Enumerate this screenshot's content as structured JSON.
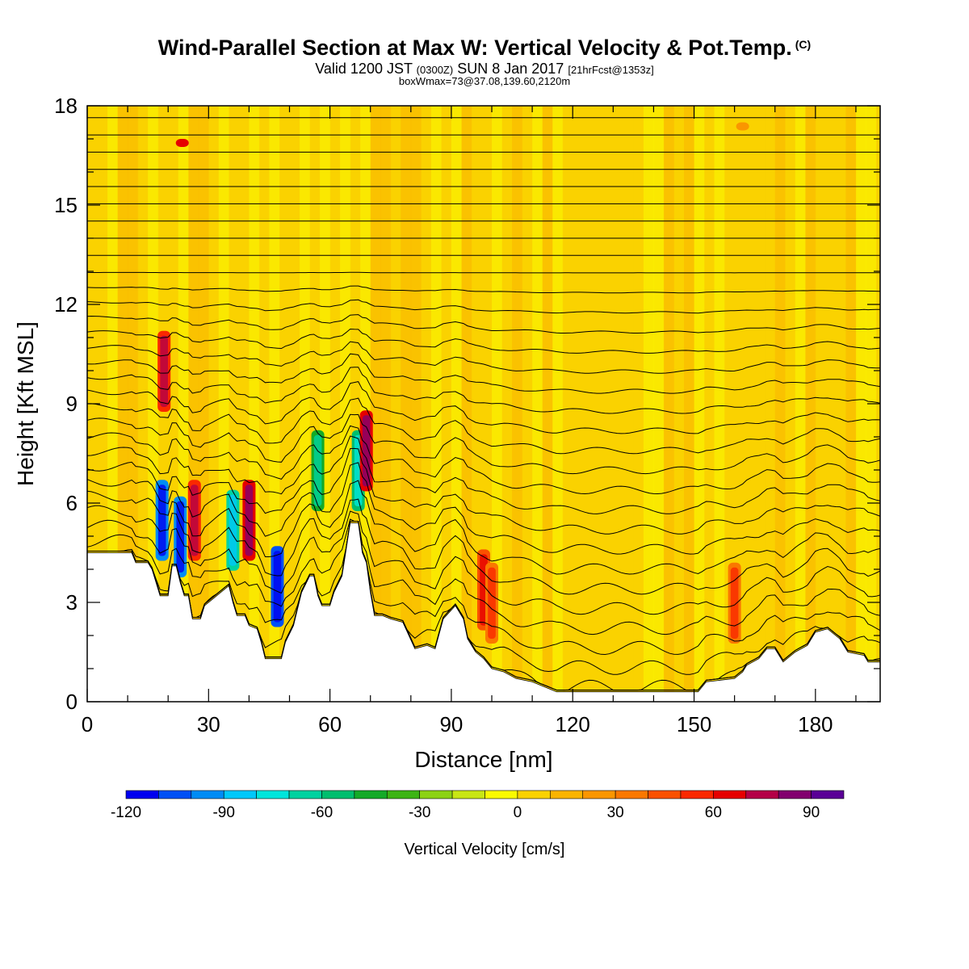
{
  "chart_data": {
    "type": "heatmap",
    "title": "Wind-Parallel Section at Max W: Vertical Velocity & Pot.Temp.",
    "title_mark": "(C)",
    "subtitle_main": "Valid 1200 JST",
    "subtitle_utc": "(0300Z)",
    "subtitle_date": "SUN 8 Jan 2017",
    "subtitle_fcst": "[21hrFcst@1353z]",
    "subtitle2": "boxWmax=73@37.08,139.60,2120m",
    "xlabel": "Distance [nm]",
    "ylabel": "Height [Kft MSL]",
    "xlim": [
      0,
      196
    ],
    "ylim": [
      0,
      18
    ],
    "xticks": [
      0,
      30,
      60,
      90,
      120,
      150,
      180
    ],
    "yticks": [
      0,
      3,
      6,
      9,
      12,
      15,
      18
    ],
    "colorbar": {
      "label": "Vertical Velocity [cm/s]",
      "min": -120,
      "max": 90,
      "step": 10,
      "tick_values": [
        -120,
        -90,
        -60,
        -30,
        0,
        30,
        60,
        90
      ],
      "colors": [
        "#0000f0",
        "#0050f5",
        "#008cf5",
        "#00c8fa",
        "#00e6dc",
        "#00d2a0",
        "#00be6e",
        "#14aa28",
        "#3cb414",
        "#8cd214",
        "#c8e614",
        "#fafa00",
        "#fad200",
        "#fab400",
        "#fa9600",
        "#fa7800",
        "#fa5000",
        "#fa2800",
        "#e60000",
        "#b40046",
        "#82006e",
        "#5a0096"
      ]
    },
    "terrain_nm_kft": [
      [
        0,
        4.5
      ],
      [
        11,
        4.5
      ],
      [
        12,
        4.2
      ],
      [
        15,
        4.2
      ],
      [
        16,
        4.0
      ],
      [
        17,
        3.6
      ],
      [
        18,
        3.2
      ],
      [
        20,
        3.2
      ],
      [
        21,
        4.1
      ],
      [
        22,
        4.1
      ],
      [
        23,
        3.6
      ],
      [
        24,
        3.2
      ],
      [
        25,
        3.2
      ],
      [
        26,
        2.5
      ],
      [
        28,
        2.5
      ],
      [
        29,
        2.9
      ],
      [
        31,
        3.1
      ],
      [
        33,
        3.3
      ],
      [
        35,
        3.5
      ],
      [
        36,
        3.0
      ],
      [
        37,
        2.6
      ],
      [
        39,
        2.6
      ],
      [
        40,
        2.3
      ],
      [
        42,
        2.2
      ],
      [
        43,
        1.8
      ],
      [
        44,
        1.3
      ],
      [
        48,
        1.3
      ],
      [
        49,
        1.8
      ],
      [
        51,
        2.3
      ],
      [
        52,
        2.8
      ],
      [
        53,
        3.3
      ],
      [
        55,
        3.8
      ],
      [
        56,
        3.8
      ],
      [
        57,
        3.2
      ],
      [
        58,
        2.9
      ],
      [
        60,
        2.9
      ],
      [
        61,
        3.3
      ],
      [
        63,
        3.8
      ],
      [
        64,
        4.6
      ],
      [
        65,
        5.4
      ],
      [
        67,
        5.4
      ],
      [
        68,
        4.5
      ],
      [
        69,
        4.2
      ],
      [
        70,
        3.3
      ],
      [
        71,
        2.6
      ],
      [
        73,
        2.6
      ],
      [
        75,
        2.5
      ],
      [
        78,
        2.4
      ],
      [
        81,
        1.6
      ],
      [
        84,
        1.7
      ],
      [
        86,
        1.6
      ],
      [
        88,
        2.5
      ],
      [
        91,
        2.9
      ],
      [
        93,
        2.5
      ],
      [
        94,
        1.9
      ],
      [
        96,
        1.5
      ],
      [
        98,
        1.3
      ],
      [
        100,
        1.0
      ],
      [
        103,
        0.9
      ],
      [
        106,
        0.7
      ],
      [
        110,
        0.6
      ],
      [
        116,
        0.3
      ],
      [
        140,
        0.3
      ],
      [
        151,
        0.3
      ],
      [
        153,
        0.6
      ],
      [
        160,
        0.7
      ],
      [
        162,
        0.9
      ],
      [
        163,
        1.1
      ],
      [
        166,
        1.3
      ],
      [
        168,
        1.6
      ],
      [
        170,
        1.6
      ],
      [
        172,
        1.2
      ],
      [
        175,
        1.5
      ],
      [
        178,
        1.7
      ],
      [
        180,
        2.1
      ],
      [
        183,
        2.2
      ],
      [
        186,
        1.9
      ],
      [
        188,
        1.5
      ],
      [
        192,
        1.4
      ],
      [
        193,
        1.2
      ],
      [
        196,
        1.2
      ]
    ],
    "updraft_bands": [
      {
        "x": 18.5,
        "h": 4.5,
        "w": -100
      },
      {
        "x": 19,
        "h": 9,
        "w": 50
      },
      {
        "x": 23,
        "h": 4.0,
        "w": -95
      },
      {
        "x": 23.5,
        "h": 17,
        "w": 60
      },
      {
        "x": 26.5,
        "h": 4.5,
        "w": 55
      },
      {
        "x": 36,
        "h": 4.2,
        "w": -70
      },
      {
        "x": 40,
        "h": 4.5,
        "w": 60
      },
      {
        "x": 47,
        "h": 2.5,
        "w": -105
      },
      {
        "x": 57,
        "h": 6.0,
        "w": -45
      },
      {
        "x": 67,
        "h": 6.0,
        "w": -60
      },
      {
        "x": 69,
        "h": 6.6,
        "w": 60
      },
      {
        "x": 98,
        "h": 2.4,
        "w": 40
      },
      {
        "x": 100,
        "h": 2.0,
        "w": 35
      },
      {
        "x": 160,
        "h": 2.0,
        "w": 30
      },
      {
        "x": 162,
        "h": 17.5,
        "w": 20
      }
    ]
  }
}
